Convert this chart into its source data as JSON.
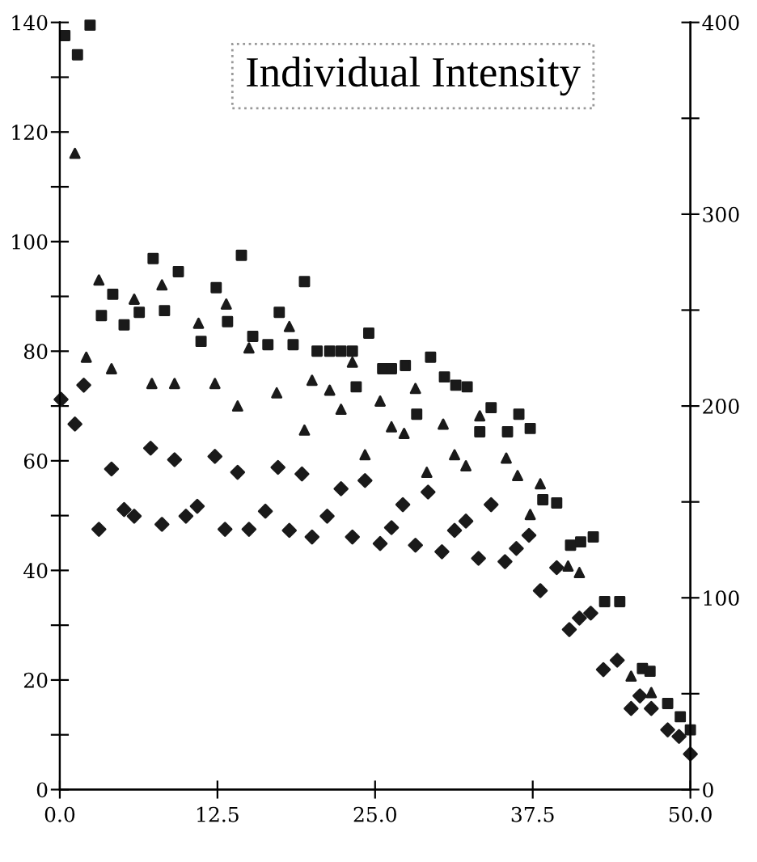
{
  "chart_data": {
    "type": "scatter",
    "title": "Individual Intensity",
    "xlim": [
      0,
      50
    ],
    "xticks": [
      {
        "value": 0,
        "label": "0.0"
      },
      {
        "value": 12.5,
        "label": "12.5"
      },
      {
        "value": 25,
        "label": "25.0"
      },
      {
        "value": 37.5,
        "label": "37.5"
      },
      {
        "value": 50,
        "label": "50.0"
      }
    ],
    "ylim": [
      0,
      140
    ],
    "yticks": [
      0,
      {
        "value": 10,
        "label": null
      },
      20,
      {
        "value": 30,
        "label": null
      },
      40,
      {
        "value": 50,
        "label": null
      },
      60,
      {
        "value": 70,
        "label": null
      },
      80,
      {
        "value": 90,
        "label": null
      },
      100,
      {
        "value": 110,
        "label": null
      },
      120,
      {
        "value": 130,
        "label": null
      },
      140
    ],
    "y2lim": [
      0,
      400
    ],
    "y2ticks": [
      0,
      {
        "value": 50,
        "label": null
      },
      100,
      {
        "value": 150,
        "label": null
      },
      200,
      {
        "value": 250,
        "label": null
      },
      300,
      {
        "value": 350,
        "label": null
      },
      400
    ],
    "grid": false,
    "legend": false,
    "series": [
      {
        "marker": "square",
        "color": "#1a1a1a",
        "x": [
          0.4,
          1.4,
          2.4,
          3.3,
          4.2,
          5.1,
          6.3,
          7.4,
          8.3,
          9.4,
          11.2,
          12.4,
          13.3,
          14.4,
          15.3,
          16.5,
          17.4,
          18.5,
          19.4,
          20.4,
          21.4,
          22.3,
          23.2,
          23.5,
          24.5,
          25.6,
          26.3,
          27.4,
          28.3,
          29.4,
          30.5,
          31.4,
          32.3,
          33.3,
          34.2,
          35.5,
          36.4,
          37.3,
          38.3,
          39.4,
          40.5,
          41.3,
          42.3,
          43.2,
          44.4,
          46.2,
          46.8,
          48.2,
          49.2,
          50.0
        ],
        "values": [
          137.6,
          134.1,
          139.5,
          86.5,
          90.4,
          84.8,
          87.1,
          96.9,
          87.4,
          94.5,
          81.8,
          91.6,
          85.4,
          97.5,
          82.7,
          81.2,
          87.1,
          81.2,
          92.7,
          80.0,
          80.0,
          80.0,
          80.0,
          73.5,
          83.3,
          76.8,
          76.8,
          77.4,
          68.5,
          78.9,
          75.3,
          73.8,
          73.5,
          65.3,
          69.7,
          65.3,
          68.5,
          65.9,
          52.9,
          52.3,
          44.6,
          45.2,
          46.1,
          34.3,
          34.3,
          22.1,
          21.6,
          15.7,
          13.3,
          10.9
        ]
      },
      {
        "marker": "triangle",
        "color": "#1a1a1a",
        "x": [
          1.2,
          2.1,
          3.1,
          4.1,
          5.9,
          7.3,
          8.1,
          9.1,
          11.0,
          12.3,
          13.2,
          14.1,
          15.0,
          17.2,
          18.2,
          19.4,
          20.0,
          21.4,
          22.3,
          23.2,
          24.2,
          25.4,
          26.3,
          27.3,
          28.2,
          29.1,
          30.4,
          31.3,
          32.2,
          33.3,
          35.4,
          36.3,
          37.3,
          38.1,
          40.3,
          41.2,
          45.3,
          46.9
        ],
        "values": [
          116.1,
          78.9,
          93.0,
          76.8,
          89.5,
          74.1,
          92.1,
          74.1,
          85.1,
          74.1,
          88.6,
          70.0,
          80.6,
          72.4,
          84.5,
          65.6,
          74.7,
          72.9,
          69.4,
          78.0,
          61.1,
          70.9,
          66.2,
          65.0,
          73.2,
          57.9,
          66.7,
          61.1,
          59.1,
          68.2,
          60.5,
          57.3,
          50.2,
          55.8,
          40.8,
          39.6,
          20.7,
          17.7
        ]
      },
      {
        "marker": "diamond",
        "color": "#1a1a1a",
        "x": [
          0.1,
          1.2,
          1.9,
          3.1,
          4.1,
          5.1,
          5.9,
          7.2,
          8.1,
          9.1,
          10.0,
          10.9,
          12.3,
          13.1,
          14.1,
          15.0,
          16.3,
          17.3,
          18.2,
          19.2,
          20.0,
          21.2,
          22.3,
          23.2,
          24.2,
          25.4,
          26.3,
          27.2,
          28.2,
          29.2,
          30.3,
          31.3,
          32.2,
          33.2,
          34.2,
          35.3,
          36.2,
          37.2,
          38.1,
          39.4,
          40.4,
          41.2,
          42.1,
          43.1,
          44.2,
          45.3,
          46.0,
          46.9,
          48.2,
          49.1,
          50.0
        ],
        "values": [
          71.2,
          66.7,
          73.8,
          47.5,
          58.5,
          51.1,
          49.9,
          62.3,
          48.4,
          60.2,
          49.9,
          51.7,
          60.8,
          47.5,
          57.9,
          47.5,
          50.8,
          58.8,
          47.3,
          57.6,
          46.1,
          49.9,
          54.9,
          46.1,
          56.4,
          44.9,
          47.8,
          52.0,
          44.6,
          54.3,
          43.4,
          47.3,
          49.0,
          42.2,
          52.0,
          41.6,
          44.0,
          46.4,
          36.3,
          40.5,
          29.2,
          31.3,
          32.2,
          21.9,
          23.6,
          14.8,
          17.1,
          14.8,
          10.9,
          9.7,
          6.5
        ]
      }
    ]
  }
}
